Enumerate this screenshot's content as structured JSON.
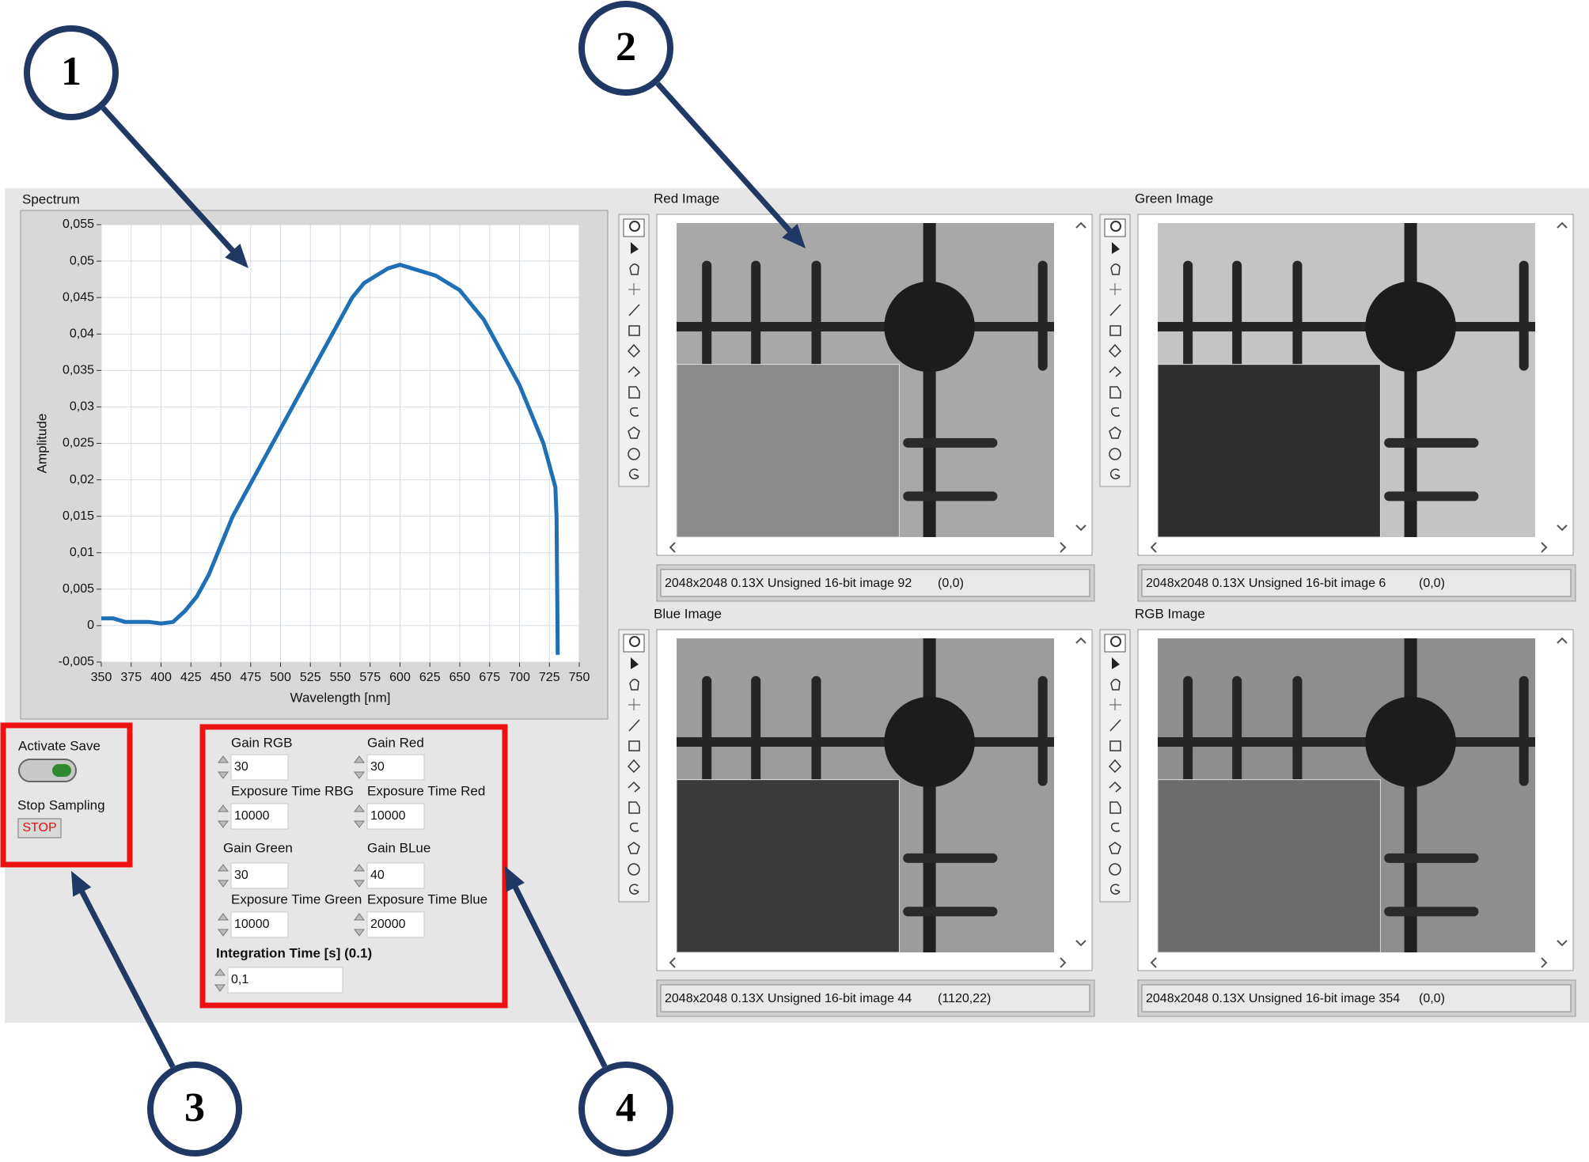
{
  "callouts": [
    "1",
    "2",
    "3",
    "4"
  ],
  "chart_data": {
    "type": "line",
    "title": "Spectrum",
    "x_label": "Wavelength [nm]",
    "y_label": "Amplitude",
    "x": [
      350,
      360,
      370,
      380,
      390,
      400,
      410,
      420,
      430,
      440,
      450,
      460,
      470,
      480,
      490,
      500,
      510,
      520,
      530,
      540,
      550,
      560,
      570,
      580,
      590,
      600,
      610,
      620,
      630,
      640,
      650,
      660,
      670,
      680,
      690,
      700,
      710,
      720,
      725,
      730,
      731,
      732
    ],
    "series": [
      {
        "name": "Spectrum",
        "color": "#1f6fb4",
        "values": [
          0.001,
          0.001,
          0.0005,
          0.0005,
          0.0005,
          0.0003,
          0.0005,
          0.002,
          0.004,
          0.007,
          0.011,
          0.015,
          0.018,
          0.021,
          0.024,
          0.027,
          0.03,
          0.033,
          0.036,
          0.039,
          0.042,
          0.045,
          0.047,
          0.048,
          0.049,
          0.0495,
          0.049,
          0.0485,
          0.048,
          0.047,
          0.046,
          0.044,
          0.042,
          0.039,
          0.036,
          0.033,
          0.029,
          0.025,
          0.022,
          0.019,
          0.015,
          -0.004
        ]
      }
    ],
    "xlim": [
      350,
      750
    ],
    "xticks": [
      350,
      375,
      400,
      425,
      450,
      475,
      500,
      525,
      550,
      575,
      600,
      625,
      650,
      675,
      700,
      725,
      750
    ],
    "ylim": [
      -0.005,
      0.055
    ],
    "yticks": [
      {
        "value": -0.005,
        "label": "-0,005"
      },
      0,
      {
        "value": 0.005,
        "label": "0,005"
      },
      {
        "value": 0.01,
        "label": "0,01"
      },
      {
        "value": 0.015,
        "label": "0,015"
      },
      {
        "value": 0.02,
        "label": "0,02"
      },
      {
        "value": 0.025,
        "label": "0,025"
      },
      {
        "value": 0.03,
        "label": "0,03"
      },
      {
        "value": 0.035,
        "label": "0,035"
      },
      {
        "value": 0.04,
        "label": "0,04"
      },
      {
        "value": 0.045,
        "label": "0,045"
      },
      {
        "value": 0.05,
        "label": "0,05"
      },
      {
        "value": 0.055,
        "label": "0,055"
      }
    ],
    "grid": true
  },
  "image_panels": [
    {
      "title": "Red Image",
      "status": "2048x2048 0.13X Unsigned 16-bit image 92",
      "coords": "(0,0)"
    },
    {
      "title": "Green Image",
      "status": "2048x2048 0.13X Unsigned 16-bit image 6",
      "coords": "(0,0)"
    },
    {
      "title": "Blue Image",
      "status": "2048x2048 0.13X Unsigned 16-bit image 44",
      "coords": "(1120,22)"
    },
    {
      "title": "RGB Image",
      "status": "2048x2048 0.13X Unsigned 16-bit image 354",
      "coords": "(0,0)"
    }
  ],
  "controls": {
    "activate_save": "Activate Save",
    "stop_sampling": "Stop  Sampling",
    "stop_button": "STOP",
    "fields": [
      {
        "label": "Gain RGB",
        "value": "30"
      },
      {
        "label": "Gain Red",
        "value": "30"
      },
      {
        "label": "Exposure Time RBG",
        "value": "10000"
      },
      {
        "label": "Exposure Time Red",
        "value": "10000"
      },
      {
        "label": "Gain Green",
        "value": "30"
      },
      {
        "label": "Gain BLue",
        "value": "40"
      },
      {
        "label": "Exposure Time Green",
        "value": "10000"
      },
      {
        "label": "Exposure Time Blue",
        "value": "20000"
      }
    ],
    "integration": {
      "label": "Integration Time [s] (0.1)",
      "value": "0,1"
    }
  }
}
